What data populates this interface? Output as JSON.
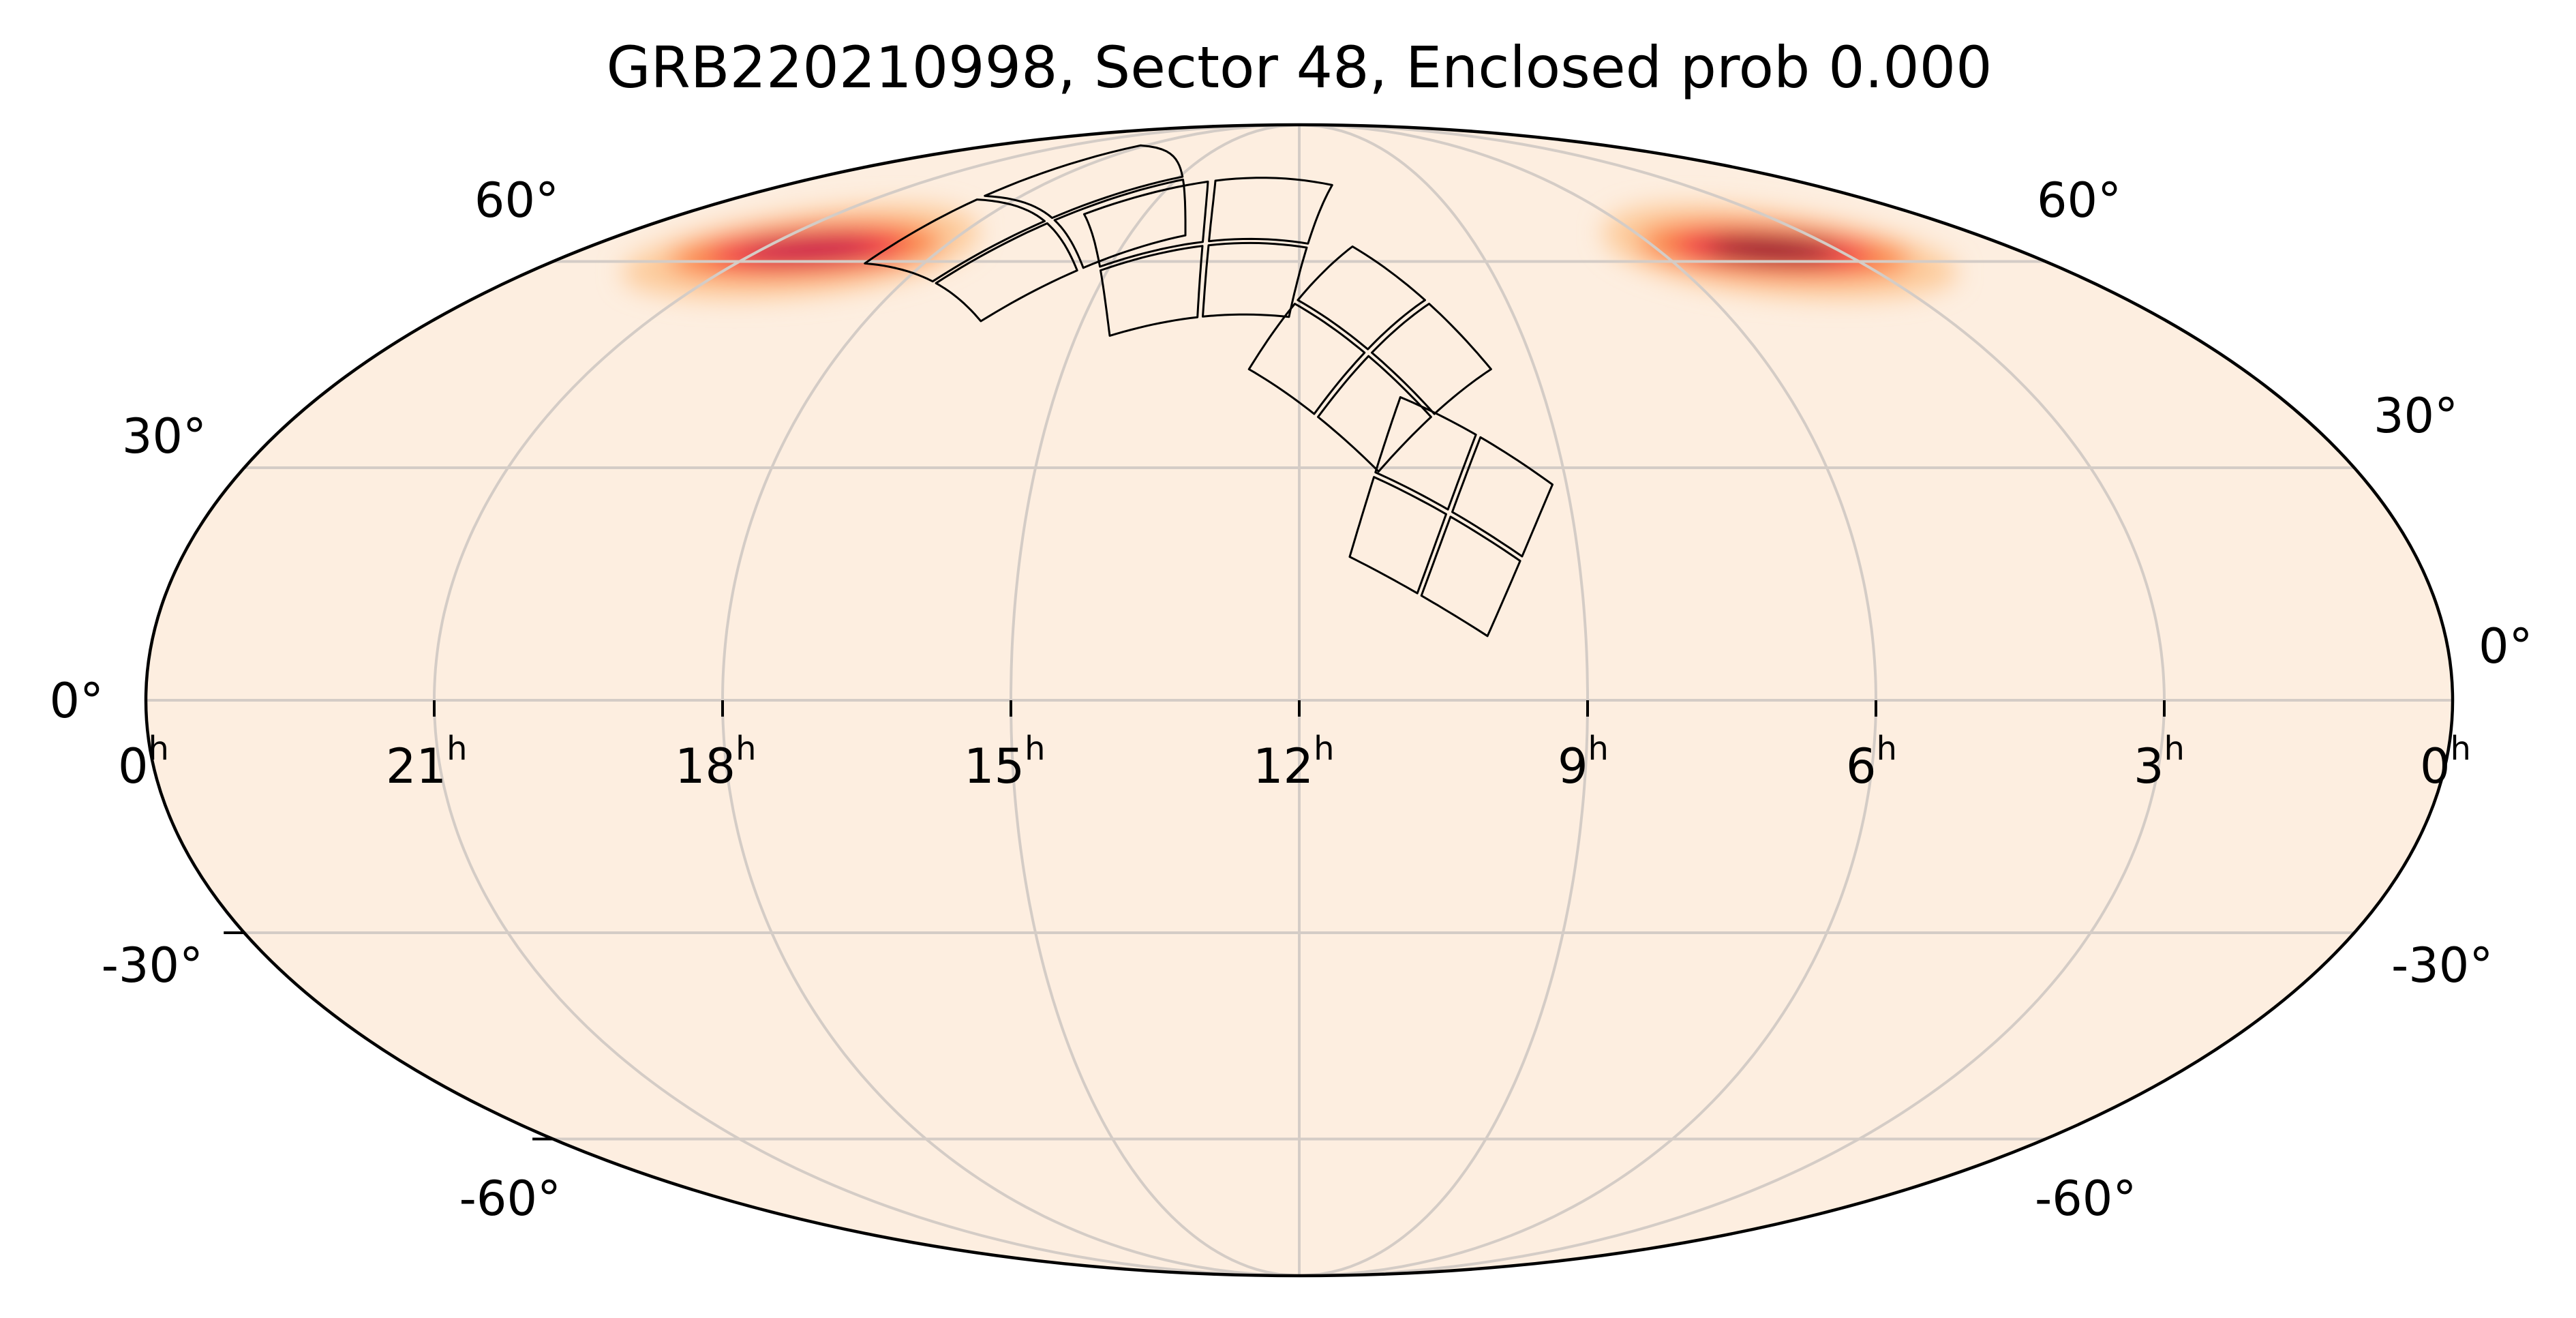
{
  "chart_data": {
    "type": "heatmap",
    "projection": "mollweide",
    "title": "GRB220210998, Sector 48, Enclosed prob 0.000",
    "xlabel": "",
    "ylabel": "",
    "x_axis": {
      "quantity": "Right Ascension",
      "tick_labels": [
        "0h",
        "21h",
        "18h",
        "15h",
        "12h",
        "9h",
        "6h",
        "3h",
        "0h"
      ],
      "tick_values_hours": [
        24,
        21,
        18,
        15,
        12,
        9,
        6,
        3,
        0
      ],
      "direction": "RA increases to the left"
    },
    "y_axis": {
      "quantity": "Declination",
      "tick_labels": [
        "-60°",
        "-30°",
        "0°",
        "30°",
        "60°"
      ],
      "tick_values_deg": [
        -60,
        -30,
        0,
        30,
        60
      ],
      "range": [
        -90,
        90
      ]
    },
    "grid": true,
    "grid_color": "#d4ccc6",
    "background_color": "#fdeee0",
    "colormap": [
      "#fdeee0",
      "#fdc894",
      "#fb7b3c",
      "#f01b4c",
      "#b8104f",
      "#5c0a2a"
    ],
    "probability_hotspots": [
      {
        "name": "northwest-arc",
        "ra_hours": 20.2,
        "dec_deg": 58,
        "peak_color": "#c8104c",
        "extent_deg": [
          40,
          8
        ]
      },
      {
        "name": "northeast-arc",
        "ra_hours": 4.1,
        "dec_deg": 58,
        "peak_color": "#3d0519",
        "extent_deg": [
          40,
          8
        ]
      }
    ],
    "enclosed_probability": 0.0,
    "sector": 48,
    "event": "GRB220210998",
    "footprint": {
      "description": "TESS Sector 48 camera/CCD footprint: 4 cameras, each 2x2 CCD grid",
      "cameras": [
        {
          "id": 1,
          "center_ra_hours": 10.35,
          "center_dec_deg": 24,
          "width_deg": 24,
          "height_deg": 24,
          "roll_deg": -28
        },
        {
          "id": 2,
          "center_ra_hours": 11.1,
          "center_dec_deg": 46,
          "width_deg": 24,
          "height_deg": 24,
          "roll_deg": -45
        },
        {
          "id": 3,
          "center_ra_hours": 13.6,
          "center_dec_deg": 63,
          "width_deg": 24,
          "height_deg": 24,
          "roll_deg": -80
        },
        {
          "id": 4,
          "center_ra_hours": 16.7,
          "center_dec_deg": 67,
          "width_deg": 24,
          "height_deg": 24,
          "roll_deg": -125
        }
      ]
    }
  },
  "labels": {
    "title": "GRB220210998, Sector 48, Enclosed prob 0.000",
    "ra_ticks": [
      {
        "num": "0",
        "sup": "h"
      },
      {
        "num": "21",
        "sup": "h"
      },
      {
        "num": "18",
        "sup": "h"
      },
      {
        "num": "15",
        "sup": "h"
      },
      {
        "num": "12",
        "sup": "h"
      },
      {
        "num": "9",
        "sup": "h"
      },
      {
        "num": "6",
        "sup": "h"
      },
      {
        "num": "3",
        "sup": "h"
      },
      {
        "num": "0",
        "sup": "h"
      }
    ],
    "dec_left": {
      "d60": "60°",
      "d30": "30°",
      "d0": "0°",
      "dm30": "-30°",
      "dm60": "-60°"
    },
    "dec_right": {
      "d60": "60°",
      "d30": "30°",
      "d0": "0°",
      "dm30": "-30°",
      "dm60": "-60°"
    }
  }
}
